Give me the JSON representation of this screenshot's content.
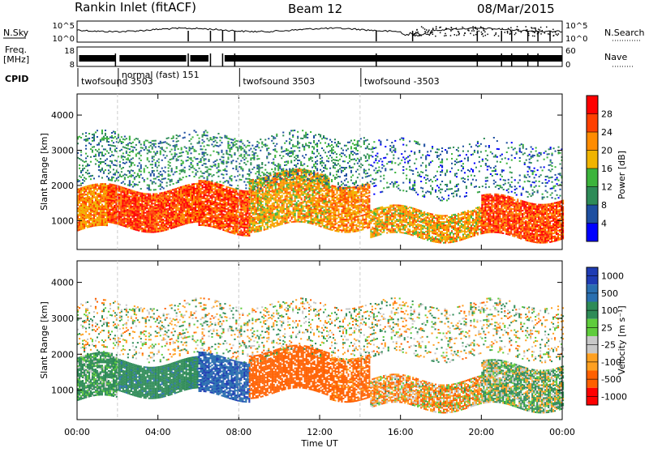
{
  "header": {
    "radar": "Rankin Inlet (fitACF)",
    "beam": "Beam 12",
    "date": "08/Mar/2015"
  },
  "noise_panel": {
    "left_label": "N.Sky",
    "left_ticks": [
      "10^5",
      "10^0"
    ],
    "right_label": "N.Search",
    "right_ticks": [
      "10^5",
      "10^0"
    ]
  },
  "freq_panel": {
    "left_label_1": "Freq.",
    "left_label_2": "[MHz]",
    "left_ticks": [
      "18",
      "8"
    ],
    "right_label": "Nave",
    "right_ticks": [
      "60",
      "0"
    ]
  },
  "cpid": {
    "label": "CPID",
    "segments": [
      {
        "start_hour": 0.0,
        "name": "twofsound 3503"
      },
      {
        "start_hour": 2.0,
        "name": "normal (fast) 151"
      },
      {
        "start_hour": 8.0,
        "name": "twofsound 3503"
      },
      {
        "start_hour": 14.0,
        "name": "twofsound -3503"
      }
    ]
  },
  "xaxis": {
    "label": "Time UT",
    "ticks": [
      "00:00",
      "04:00",
      "08:00",
      "12:00",
      "16:00",
      "20:00",
      "00:00"
    ]
  },
  "power_colorbar": {
    "label": "Power [dB]",
    "ticks": [
      "28",
      "24",
      "20",
      "16",
      "12",
      "8",
      "4"
    ],
    "colors": [
      "#ff0000",
      "#ff4000",
      "#ff8c00",
      "#f0b400",
      "#3cb43c",
      "#2e8b57",
      "#1e4fa0",
      "#0000ff"
    ]
  },
  "velocity_colorbar": {
    "label": "Velocity [m s⁻¹]",
    "ticks": [
      "1000",
      "500",
      "100",
      "25",
      "-25",
      "-100",
      "-500",
      "-1000"
    ],
    "colors": [
      "#1f3cb4",
      "#2a6fb0",
      "#2e8b57",
      "#5fcc3c",
      "#c8c8c8",
      "#ffa020",
      "#ff6000",
      "#ff0000"
    ]
  },
  "chart_data": [
    {
      "type": "heatmap",
      "title": "",
      "xlabel": "Time UT",
      "ylabel": "Slant Range [km]",
      "xlim": [
        0,
        24
      ],
      "ylim": [
        180,
        4600
      ],
      "yticks": [
        1000,
        2000,
        3000,
        4000
      ],
      "colorbar_label": "Power [dB]",
      "bands": [
        {
          "t0": 0.0,
          "t1": 1.5,
          "r0": 700,
          "r1": 1900,
          "level": 22,
          "density": 0.9
        },
        {
          "t0": 1.5,
          "t1": 6.0,
          "r0": 800,
          "r1": 1900,
          "level": 26,
          "density": 0.95
        },
        {
          "t0": 6.0,
          "t1": 8.5,
          "r0": 700,
          "r1": 2000,
          "level": 26,
          "density": 0.9
        },
        {
          "t0": 8.5,
          "t1": 12.5,
          "r0": 800,
          "r1": 2300,
          "level": 20,
          "density": 0.8
        },
        {
          "t0": 12.5,
          "t1": 14.5,
          "r0": 800,
          "r1": 2100,
          "level": 22,
          "density": 0.8
        },
        {
          "t0": 14.5,
          "t1": 20.0,
          "r0": 500,
          "r1": 1300,
          "level": 20,
          "density": 0.8
        },
        {
          "t0": 20.0,
          "t1": 24.0,
          "r0": 500,
          "r1": 1600,
          "level": 26,
          "density": 0.9
        },
        {
          "t0": 0.0,
          "t1": 14.5,
          "r0": 2000,
          "r1": 3400,
          "level": 10,
          "density": 0.25
        },
        {
          "t0": 14.5,
          "t1": 24.0,
          "r0": 1700,
          "r1": 3200,
          "level": 8,
          "density": 0.15
        }
      ]
    },
    {
      "type": "heatmap",
      "title": "",
      "xlabel": "Time UT",
      "ylabel": "Slant Range [km]",
      "xlim": [
        0,
        24
      ],
      "ylim": [
        180,
        4600
      ],
      "yticks": [
        1000,
        2000,
        3000,
        4000
      ],
      "colorbar_label": "Velocity [m s⁻¹]",
      "bands": [
        {
          "t0": 0.0,
          "t1": 2.0,
          "r0": 700,
          "r1": 1900,
          "level": 120,
          "density": 0.9
        },
        {
          "t0": 2.0,
          "t1": 6.0,
          "r0": 900,
          "r1": 1800,
          "level": 200,
          "density": 0.95
        },
        {
          "t0": 6.0,
          "t1": 8.5,
          "r0": 800,
          "r1": 1900,
          "level": 700,
          "density": 0.85
        },
        {
          "t0": 8.5,
          "t1": 12.5,
          "r0": 900,
          "r1": 2100,
          "level": -300,
          "density": 0.8
        },
        {
          "t0": 12.5,
          "t1": 14.5,
          "r0": 800,
          "r1": 2000,
          "level": -200,
          "density": 0.75
        },
        {
          "t0": 14.5,
          "t1": 20.0,
          "r0": 500,
          "r1": 1300,
          "level": -60,
          "density": 0.8
        },
        {
          "t0": 20.0,
          "t1": 24.0,
          "r0": 500,
          "r1": 1700,
          "level": 50,
          "density": 0.85
        },
        {
          "t0": 0.0,
          "t1": 24.0,
          "r0": 1900,
          "r1": 3400,
          "level": 0,
          "density": 0.2
        }
      ]
    }
  ]
}
